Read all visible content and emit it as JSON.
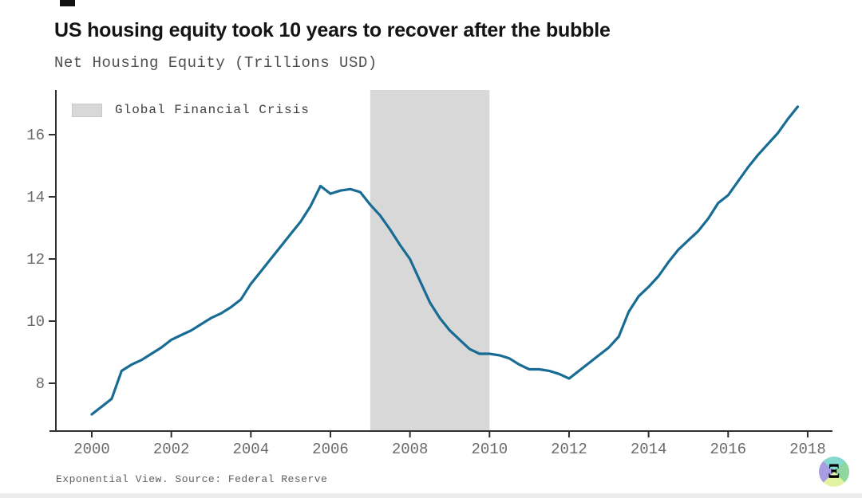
{
  "page": {
    "title": "US housing equity took 10 years to recover after the bubble",
    "subtitle": "Net Housing Equity (Trillions USD)",
    "footer": "Exponential View. Source: Federal Reserve",
    "logo_glyph": "Ξ"
  },
  "legend": {
    "label": "Global Financial Crisis"
  },
  "colors": {
    "line": "#186c94",
    "band": "#d8d8d8",
    "axis": "#303030",
    "tick_label": "#6a6a6a",
    "logo_top": "#85d8d0",
    "logo_left": "#a89de3",
    "logo_right": "#8fd79e",
    "logo_bottom": "#e2f3a2"
  },
  "chart_data": {
    "type": "line",
    "title": "US housing equity took 10 years to recover after the bubble",
    "subtitle": "Net Housing Equity (Trillions USD)",
    "xlabel": "",
    "ylabel": "Net Housing Equity (Trillions USD)",
    "x_ticks": [
      2000,
      2002,
      2004,
      2006,
      2008,
      2010,
      2012,
      2014,
      2016,
      2018
    ],
    "y_ticks": [
      8,
      10,
      12,
      14,
      16
    ],
    "xlim": [
      1998.9,
      2018.6
    ],
    "ylim": [
      6.5,
      17.4
    ],
    "grid": false,
    "legend_position": "top-left",
    "band": {
      "label": "Global Financial Crisis",
      "x_start": 2007,
      "x_end": 2010
    },
    "series": [
      {
        "name": "Net Housing Equity (Trillions USD)",
        "points": [
          [
            2000.0,
            7.0
          ],
          [
            2000.25,
            7.25
          ],
          [
            2000.5,
            7.5
          ],
          [
            2000.75,
            8.4
          ],
          [
            2001.0,
            8.6
          ],
          [
            2001.25,
            8.75
          ],
          [
            2001.5,
            8.95
          ],
          [
            2001.75,
            9.15
          ],
          [
            2002.0,
            9.4
          ],
          [
            2002.25,
            9.55
          ],
          [
            2002.5,
            9.7
          ],
          [
            2002.75,
            9.9
          ],
          [
            2003.0,
            10.1
          ],
          [
            2003.25,
            10.25
          ],
          [
            2003.5,
            10.45
          ],
          [
            2003.75,
            10.7
          ],
          [
            2004.0,
            11.2
          ],
          [
            2004.25,
            11.6
          ],
          [
            2004.5,
            12.0
          ],
          [
            2004.75,
            12.4
          ],
          [
            2005.0,
            12.8
          ],
          [
            2005.25,
            13.2
          ],
          [
            2005.5,
            13.7
          ],
          [
            2005.75,
            14.35
          ],
          [
            2006.0,
            14.1
          ],
          [
            2006.25,
            14.2
          ],
          [
            2006.5,
            14.25
          ],
          [
            2006.75,
            14.15
          ],
          [
            2007.0,
            13.75
          ],
          [
            2007.25,
            13.4
          ],
          [
            2007.5,
            12.95
          ],
          [
            2007.75,
            12.45
          ],
          [
            2008.0,
            12.0
          ],
          [
            2008.25,
            11.3
          ],
          [
            2008.5,
            10.6
          ],
          [
            2008.75,
            10.1
          ],
          [
            2009.0,
            9.7
          ],
          [
            2009.25,
            9.4
          ],
          [
            2009.5,
            9.1
          ],
          [
            2009.75,
            8.95
          ],
          [
            2010.0,
            8.95
          ],
          [
            2010.25,
            8.9
          ],
          [
            2010.5,
            8.8
          ],
          [
            2010.75,
            8.6
          ],
          [
            2011.0,
            8.45
          ],
          [
            2011.25,
            8.45
          ],
          [
            2011.5,
            8.4
          ],
          [
            2011.75,
            8.3
          ],
          [
            2012.0,
            8.15
          ],
          [
            2012.25,
            8.4
          ],
          [
            2012.5,
            8.65
          ],
          [
            2012.75,
            8.9
          ],
          [
            2013.0,
            9.15
          ],
          [
            2013.25,
            9.5
          ],
          [
            2013.5,
            10.3
          ],
          [
            2013.75,
            10.8
          ],
          [
            2014.0,
            11.1
          ],
          [
            2014.25,
            11.45
          ],
          [
            2014.5,
            11.9
          ],
          [
            2014.75,
            12.3
          ],
          [
            2015.0,
            12.6
          ],
          [
            2015.25,
            12.9
          ],
          [
            2015.5,
            13.3
          ],
          [
            2015.75,
            13.8
          ],
          [
            2016.0,
            14.05
          ],
          [
            2016.25,
            14.5
          ],
          [
            2016.5,
            14.95
          ],
          [
            2016.75,
            15.35
          ],
          [
            2017.0,
            15.7
          ],
          [
            2017.25,
            16.05
          ],
          [
            2017.5,
            16.5
          ],
          [
            2017.75,
            16.9
          ]
        ]
      }
    ]
  }
}
